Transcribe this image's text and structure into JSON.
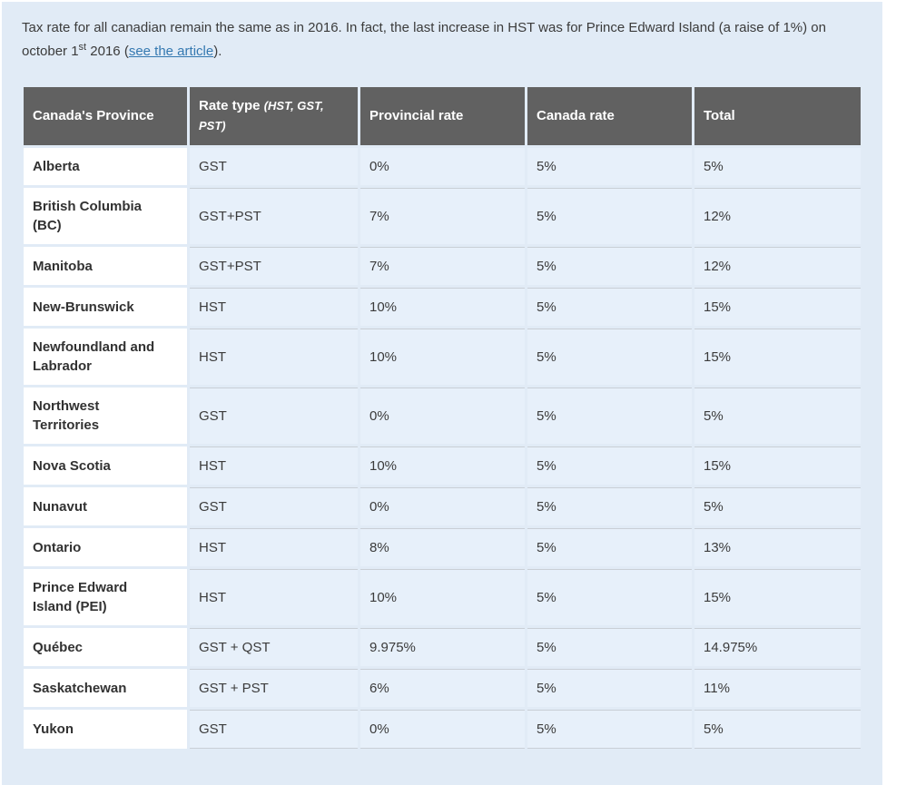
{
  "intro": {
    "part1": "Tax rate for all canadian remain the same as in 2016. In fact, the last increase in HST was for Prince Edward Island (a raise of 1%) on october 1",
    "superscript": "st",
    "part2": " 2016 (",
    "link_label": "see the article",
    "part3": ")."
  },
  "table": {
    "headers": {
      "province": "Canada's Province",
      "rate_type": "Rate type ",
      "rate_type_note": "(HST, GST, PST)",
      "provincial_rate": "Provincial rate",
      "canada_rate": "Canada rate",
      "total": "Total"
    },
    "rows": [
      {
        "province": "Alberta",
        "rate_type": "GST",
        "provincial_rate": "0%",
        "canada_rate": "5%",
        "total": "5%"
      },
      {
        "province": "British Columbia (BC)",
        "rate_type": "GST+PST",
        "provincial_rate": "7%",
        "canada_rate": "5%",
        "total": "12%"
      },
      {
        "province": "Manitoba",
        "rate_type": "GST+PST",
        "provincial_rate": "7%",
        "canada_rate": "5%",
        "total": "12%"
      },
      {
        "province": "New-Brunswick",
        "rate_type": "HST",
        "provincial_rate": "10%",
        "canada_rate": "5%",
        "total": "15%"
      },
      {
        "province": "Newfoundland and Labrador",
        "rate_type": "HST",
        "provincial_rate": "10%",
        "canada_rate": "5%",
        "total": "15%"
      },
      {
        "province": "Northwest Territories",
        "rate_type": "GST",
        "provincial_rate": "0%",
        "canada_rate": "5%",
        "total": "5%"
      },
      {
        "province": "Nova Scotia",
        "rate_type": "HST",
        "provincial_rate": "10%",
        "canada_rate": "5%",
        "total": "15%"
      },
      {
        "province": "Nunavut",
        "rate_type": "GST",
        "provincial_rate": "0%",
        "canada_rate": "5%",
        "total": "5%"
      },
      {
        "province": "Ontario",
        "rate_type": "HST",
        "provincial_rate": "8%",
        "canada_rate": "5%",
        "total": "13%"
      },
      {
        "province": "Prince Edward Island (PEI)",
        "rate_type": "HST",
        "provincial_rate": "10%",
        "canada_rate": "5%",
        "total": "15%"
      },
      {
        "province": "Québec",
        "rate_type": "GST + QST",
        "provincial_rate": "9.975%",
        "canada_rate": "5%",
        "total": "14.975%"
      },
      {
        "province": "Saskatchewan",
        "rate_type": "GST + PST",
        "provincial_rate": "6%",
        "canada_rate": "5%",
        "total": "11%"
      },
      {
        "province": "Yukon",
        "rate_type": "GST",
        "provincial_rate": "0%",
        "canada_rate": "5%",
        "total": "5%"
      }
    ]
  },
  "colors": {
    "page_background": "#ffffff",
    "panel_background": "#e1ebf6",
    "header_background": "#616161",
    "header_text": "#ffffff",
    "body_text": "#3b3b3b",
    "province_text": "#323232",
    "cell_background": "#e7f0fa",
    "province_cell_background": "#ffffff",
    "row_divider": "#c9cfd6",
    "link": "#3579b1"
  }
}
